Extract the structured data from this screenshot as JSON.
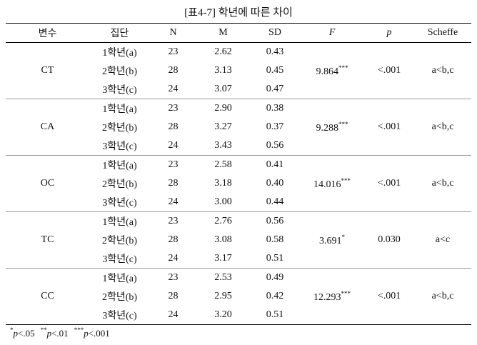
{
  "title": "[표4-7] 학년에 따른 차이",
  "table": {
    "header": [
      "변수",
      "집단",
      "N",
      "M",
      "SD",
      "F",
      "p",
      "Scheffe"
    ],
    "groups": [
      {
        "variable": "CT",
        "rows": [
          [
            "1학년(a)",
            "23",
            "2.62",
            "0.43"
          ],
          [
            "2학년(b)",
            "28",
            "3.13",
            "0.45"
          ],
          [
            "3학년(c)",
            "24",
            "3.07",
            "0.47"
          ]
        ],
        "F": "9.864",
        "sig": "***",
        "p": "<.001",
        "scheffe": "a<b,c"
      },
      {
        "variable": "CA",
        "rows": [
          [
            "1학년(a)",
            "23",
            "2.90",
            "0.38"
          ],
          [
            "2학년(b)",
            "28",
            "3.27",
            "0.37"
          ],
          [
            "3학년(c)",
            "24",
            "3.43",
            "0.56"
          ]
        ],
        "F": "9.288",
        "sig": "***",
        "p": "<.001",
        "scheffe": "a<b,c"
      },
      {
        "variable": "OC",
        "rows": [
          [
            "1학년(a)",
            "23",
            "2.58",
            "0.41"
          ],
          [
            "2학년(b)",
            "28",
            "3.18",
            "0.40"
          ],
          [
            "3학년(c)",
            "24",
            "3.00",
            "0.44"
          ]
        ],
        "F": "14.016",
        "sig": "***",
        "p": "<.001",
        "scheffe": "a<b,c"
      },
      {
        "variable": "TC",
        "rows": [
          [
            "1학년(a)",
            "23",
            "2.76",
            "0.56"
          ],
          [
            "2학년(b)",
            "28",
            "3.08",
            "0.58"
          ],
          [
            "3학년(c)",
            "24",
            "3.17",
            "0.51"
          ]
        ],
        "F": "3.691",
        "sig": "*",
        "p": "0.030",
        "scheffe": "a<c"
      },
      {
        "variable": "CC",
        "rows": [
          [
            "1학년(a)",
            "23",
            "2.53",
            "0.49"
          ],
          [
            "2학년(b)",
            "28",
            "2.95",
            "0.42"
          ],
          [
            "3학년(c)",
            "24",
            "3.20",
            "0.51"
          ]
        ],
        "F": "12.293",
        "sig": "***",
        "p": "<.001",
        "scheffe": "a<b,c"
      }
    ]
  },
  "footnote": [
    {
      "mark": "*",
      "p": "p",
      "rest": "<.05"
    },
    {
      "mark": "**",
      "p": "p",
      "rest": "<.01"
    },
    {
      "mark": "***",
      "p": "p",
      "rest": "<.001"
    }
  ]
}
